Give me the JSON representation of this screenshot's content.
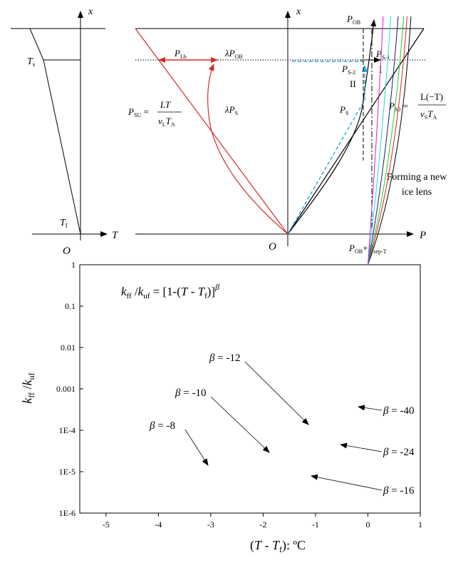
{
  "panel_left": {
    "x_axis_label": "x",
    "t_axis_label": "T",
    "origin_label": "O",
    "ts_label": "T",
    "ts_sub": "s",
    "tf_label": "T",
    "tf_sub": "f"
  },
  "panel_right": {
    "x_axis_label": "x",
    "p_axis_label": "P",
    "origin_label": "O",
    "p_ob_top": {
      "main": "P",
      "sub": "OB"
    },
    "p_lb": {
      "main": "P",
      "sub": "Lb"
    },
    "lambda_p_ob": {
      "prefix": "λ",
      "main": "P",
      "sub": "OB"
    },
    "p_s1": {
      "main": "P",
      "sub": "S-1"
    },
    "p_s2": {
      "main": "P",
      "sub": "S-2"
    },
    "region_1": "I",
    "region_2": "II",
    "p_s": {
      "main": "P",
      "sub": "S"
    },
    "lambda_p_s": {
      "prefix": "λ",
      "main": "P",
      "sub": "S"
    },
    "p_su": {
      "lhs_main": "P",
      "lhs_sub": "SU",
      "num": "LT",
      "den_v": "v",
      "den_v_sub": "L",
      "den_t": "T",
      "den_t_sub": "A"
    },
    "p_s0": {
      "lhs_main": "P",
      "lhs_sub": "S0",
      "num": "L(−T)",
      "den_v": "v",
      "den_v_sub": "S",
      "den_t": "T",
      "den_t_sub": "A"
    },
    "new_lens_line1": "Forming a new",
    "new_lens_line2": "ice lens",
    "p_bottom": {
      "main1": "P",
      "sub1": "OB",
      "plus": "+",
      "main2": "P",
      "sub2": "sep-T"
    },
    "colors": {
      "red": "#d42a2a",
      "cyan": "#29a8e0",
      "black": "#000000"
    }
  },
  "chart_data": {
    "type": "line",
    "title": "",
    "formula": {
      "k1": "k",
      "k1_sub": "ff",
      "slash": " /",
      "k2": "k",
      "k2_sub": "uf",
      "eq": " = [1-(",
      "t": "T",
      "minus": " - ",
      "tf": "T",
      "tf_sub": "f",
      "close": ")]",
      "exp": "β"
    },
    "ylabel": {
      "k1": "k",
      "k1_sub": "ff",
      "slash": " /",
      "k2": "k",
      "k2_sub": "uf"
    },
    "xlabel": {
      "open": "(",
      "t": "T",
      "minus": " - ",
      "tf": "T",
      "tf_sub": "f",
      "close": "): ",
      "unit": "ºC"
    },
    "xlim": [
      -5.5,
      1
    ],
    "ylim": [
      1e-06,
      1
    ],
    "yscale": "log",
    "x_ticks": [
      -5,
      -4,
      -3,
      -2,
      -1,
      0,
      1
    ],
    "x_tick_labels": [
      "-5",
      "-4",
      "-3",
      "-2",
      "-1",
      "0",
      "1"
    ],
    "y_ticks": [
      1e-06,
      1e-05,
      0.0001,
      0.001,
      0.01,
      0.1,
      1
    ],
    "y_tick_labels": [
      "1E-6",
      "1E-5",
      "1E-4",
      "0.001",
      "0.01",
      "0.1",
      "1"
    ],
    "series": [
      {
        "name": "β = -8",
        "beta": -8,
        "color": "#000000",
        "label_prefix": "β",
        "label_value": " = -8"
      },
      {
        "name": "β = -10",
        "beta": -10,
        "color": "#e02020",
        "label_prefix": "β",
        "label_value": " = -10"
      },
      {
        "name": "β = -12",
        "beta": -12,
        "color": "#22cc22",
        "label_prefix": "β",
        "label_value": " = -12"
      },
      {
        "name": "β = -16",
        "beta": -16,
        "color": "#1a1a6e",
        "label_prefix": "β",
        "label_value": " = -16"
      },
      {
        "name": "β = -24",
        "beta": -24,
        "color": "#22d8e8",
        "label_prefix": "β",
        "label_value": " = -24"
      },
      {
        "name": "β = -40",
        "beta": -40,
        "color": "#d020d0",
        "label_prefix": "β",
        "label_value": " = -40"
      }
    ]
  }
}
